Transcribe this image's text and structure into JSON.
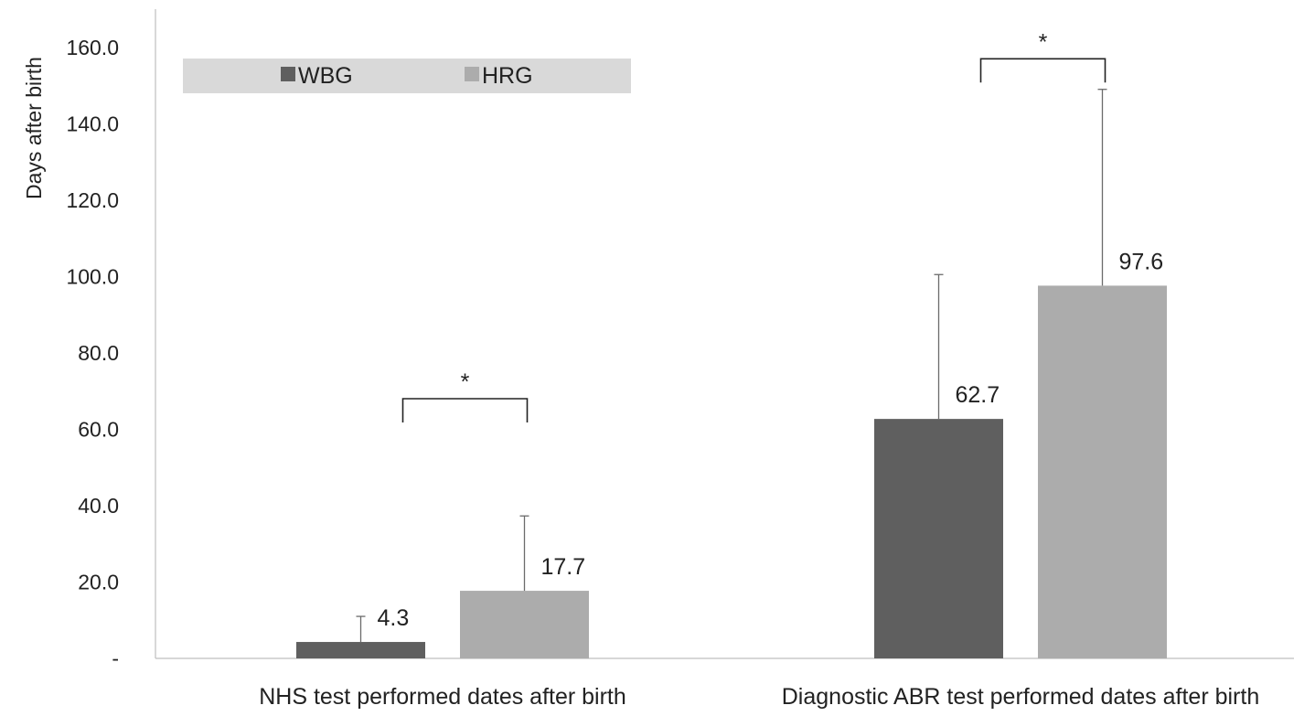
{
  "chart_data": {
    "type": "bar",
    "ylabel": "Days after birth",
    "ylim": [
      0,
      170
    ],
    "yticks": [
      {
        "value": 0,
        "label": "-"
      },
      {
        "value": 20,
        "label": "20.0"
      },
      {
        "value": 40,
        "label": "40.0"
      },
      {
        "value": 60,
        "label": "60.0"
      },
      {
        "value": 80,
        "label": "80.0"
      },
      {
        "value": 100,
        "label": "100.0"
      },
      {
        "value": 120,
        "label": "120.0"
      },
      {
        "value": 140,
        "label": "140.0"
      },
      {
        "value": 160,
        "label": "160.0"
      }
    ],
    "categories": [
      "NHS test performed dates after birth",
      "Diagnostic ABR test performed dates after birth"
    ],
    "series": [
      {
        "name": "WBG",
        "color": "#5f5f5f",
        "values": [
          4.3,
          62.7
        ],
        "labels": [
          "4.3",
          "62.7"
        ],
        "error_upper": [
          11,
          100.5
        ]
      },
      {
        "name": "HRG",
        "color": "#acacac",
        "values": [
          17.7,
          97.6
        ],
        "labels": [
          "17.7",
          "97.6"
        ],
        "error_upper": [
          37.3,
          149
        ]
      }
    ],
    "significance": [
      {
        "category_index": 0,
        "label": "*",
        "bracket_value": 68
      },
      {
        "category_index": 1,
        "label": "*",
        "bracket_value": 157
      }
    ],
    "legend": {
      "position": "top-left",
      "background": "#d9d9d9"
    },
    "grid": false
  }
}
